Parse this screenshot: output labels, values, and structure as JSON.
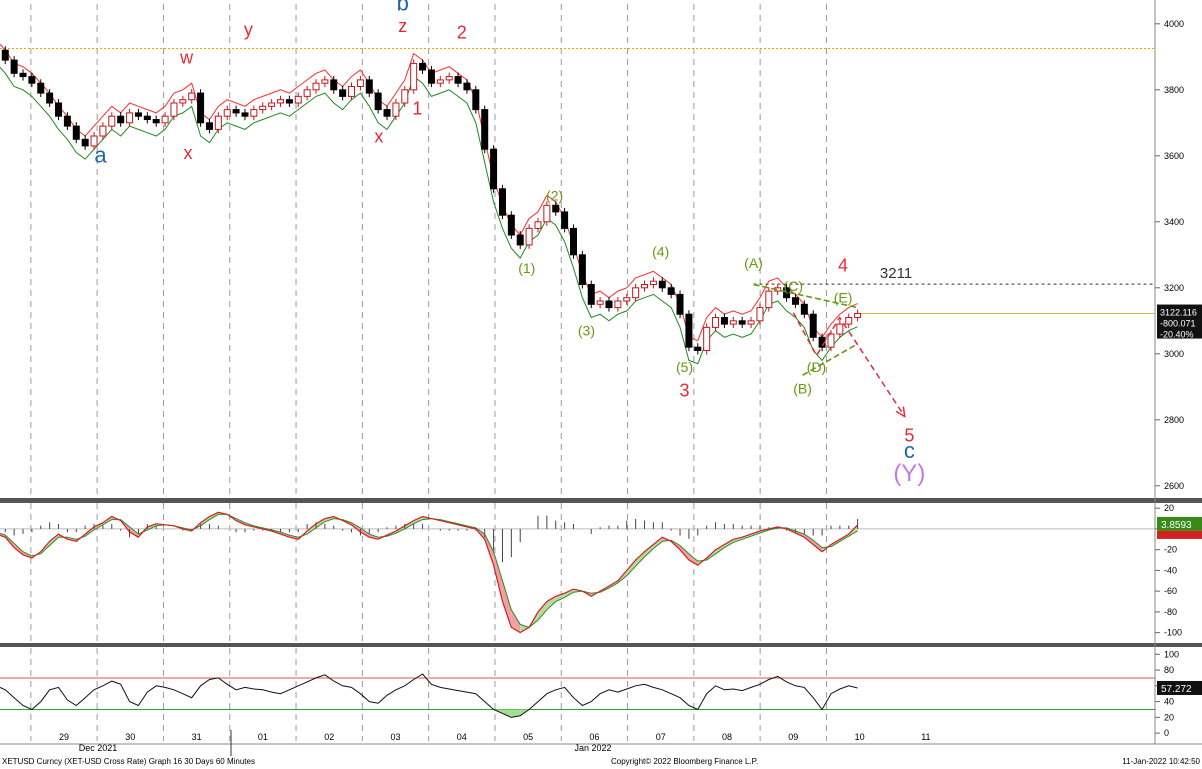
{
  "window": {
    "title": "XETUSD Curncy (XET-USD Cross Rate) Graph 16 30 Days 60 Minutes"
  },
  "footer": {
    "left": "XETUSD Curncy (XET-USD Cross Rate) Graph 16 30 Days 60 Minutes",
    "center": "Copyright© 2022 Bloomberg Finance L.P.",
    "right": "11-Jan-2022 10:42:50"
  },
  "colors": {
    "up": "#c8161d",
    "down": "#000000",
    "upper_band": "#ff2a2a",
    "lower_band": "#1f8a1f",
    "wave_red": "#e8283a",
    "wave_blue": "#2266aa",
    "wave_green": "#669911",
    "wave_purple": "#c07ae6",
    "level_orange": "#e0a800"
  },
  "chart_data": [
    {
      "type": "line",
      "name": "price",
      "x_labels": [
        "29",
        "30",
        "31",
        "01",
        "02",
        "03",
        "04",
        "05",
        "06",
        "07",
        "08",
        "09",
        "10",
        "11"
      ],
      "x_sublabels": [
        "Dec 2021",
        "Jan 2022"
      ],
      "ylim": [
        2560,
        4060
      ],
      "yticks": [
        2600,
        2800,
        3000,
        3200,
        3400,
        3600,
        3800,
        4000
      ],
      "grid": true,
      "close_series": [
        3920,
        3890,
        3850,
        3840,
        3820,
        3790,
        3760,
        3720,
        3690,
        3650,
        3630,
        3660,
        3690,
        3720,
        3700,
        3730,
        3720,
        3710,
        3700,
        3720,
        3760,
        3770,
        3790,
        3700,
        3680,
        3720,
        3740,
        3730,
        3720,
        3740,
        3750,
        3760,
        3770,
        3760,
        3780,
        3800,
        3820,
        3830,
        3800,
        3780,
        3810,
        3830,
        3790,
        3740,
        3720,
        3760,
        3800,
        3880,
        3860,
        3820,
        3830,
        3840,
        3820,
        3800,
        3740,
        3620,
        3500,
        3420,
        3360,
        3330,
        3380,
        3400,
        3450,
        3430,
        3380,
        3300,
        3210,
        3150,
        3160,
        3140,
        3160,
        3170,
        3200,
        3210,
        3220,
        3200,
        3180,
        3120,
        3020,
        3010,
        3080,
        3110,
        3090,
        3100,
        3090,
        3100,
        3140,
        3190,
        3200,
        3170,
        3150,
        3120,
        3050,
        3020,
        3060,
        3090,
        3110,
        3122
      ],
      "current_price": "3122.116",
      "change": "-800.071",
      "change_pct": "-20.40%",
      "levels": [
        {
          "label": "3211",
          "value": 3211
        },
        {
          "label": "",
          "value": 3925
        },
        {
          "label": "",
          "value": 3122
        }
      ],
      "annotations": [
        {
          "text": "a",
          "x": 29.55,
          "y": 3580
        },
        {
          "text": "w",
          "x": 30.85,
          "y": 3880
        },
        {
          "text": "x",
          "x": 30.87,
          "y": 3590
        },
        {
          "text": "y",
          "x": 31.78,
          "y": 3965
        },
        {
          "text": "x",
          "x": 33.75,
          "y": 3640
        },
        {
          "text": "b",
          "x": 34.11,
          "y": 4040
        },
        {
          "text": "z",
          "x": 34.11,
          "y": 3975
        },
        {
          "text": "1",
          "x": 34.33,
          "y": 3725
        },
        {
          "text": "2",
          "x": 35.0,
          "y": 3955
        },
        {
          "text": "(2)",
          "x": 36.4,
          "y": 3465
        },
        {
          "text": "(1)",
          "x": 35.98,
          "y": 3245
        },
        {
          "text": "(4)",
          "x": 38.0,
          "y": 3295
        },
        {
          "text": "(3)",
          "x": 36.88,
          "y": 3055
        },
        {
          "text": "(A)",
          "x": 39.4,
          "y": 3260
        },
        {
          "text": "4",
          "x": 40.75,
          "y": 3250
        },
        {
          "text": "3211",
          "x": 41.55,
          "y": 3230
        },
        {
          "text": "(C)",
          "x": 40.0,
          "y": 3190
        },
        {
          "text": "(E)",
          "x": 40.75,
          "y": 3155
        },
        {
          "text": "(5)",
          "x": 38.36,
          "y": 2945
        },
        {
          "text": "3",
          "x": 38.36,
          "y": 2870
        },
        {
          "text": "(D)",
          "x": 40.35,
          "y": 2945
        },
        {
          "text": "(B)",
          "x": 40.14,
          "y": 2880
        },
        {
          "text": "5",
          "x": 41.75,
          "y": 2735
        },
        {
          "text": "c",
          "x": 41.75,
          "y": 2685
        },
        {
          "text": "(Y)",
          "x": 41.75,
          "y": 2615
        }
      ],
      "projection": [
        {
          "x": 40.0,
          "y": 3125
        },
        {
          "x": 40.35,
          "y": 2995
        },
        {
          "x": 40.7,
          "y": 3110
        },
        {
          "x": 41.68,
          "y": 2810
        }
      ],
      "triangle_lines": [
        {
          "from": {
            "x": 39.4,
            "y": 3210
          },
          "to": {
            "x": 40.97,
            "y": 3140
          }
        },
        {
          "from": {
            "x": 40.14,
            "y": 2935
          },
          "to": {
            "x": 40.97,
            "y": 3030
          }
        }
      ]
    },
    {
      "type": "area",
      "name": "macd",
      "ylim": [
        -110,
        25
      ],
      "yticks": [
        -100,
        -80,
        -60,
        -40,
        -20,
        0,
        20
      ],
      "value_label": "3.8593",
      "fast": [
        -5,
        -8,
        -18,
        -25,
        -28,
        -22,
        -12,
        -5,
        -10,
        -12,
        -5,
        2,
        6,
        12,
        8,
        -3,
        -8,
        2,
        5,
        4,
        3,
        0,
        -2,
        6,
        12,
        16,
        14,
        8,
        4,
        2,
        0,
        -2,
        -5,
        -8,
        -10,
        -2,
        5,
        10,
        12,
        8,
        4,
        -3,
        -8,
        -10,
        -6,
        -2,
        3,
        8,
        12,
        10,
        8,
        6,
        4,
        2,
        0,
        -10,
        -35,
        -70,
        -95,
        -100,
        -95,
        -80,
        -70,
        -65,
        -62,
        -58,
        -60,
        -65,
        -60,
        -55,
        -50,
        -40,
        -30,
        -22,
        -15,
        -8,
        -12,
        -20,
        -30,
        -35,
        -28,
        -20,
        -15,
        -10,
        -8,
        -5,
        -2,
        0,
        2,
        0,
        -4,
        -8,
        -15,
        -22,
        -15,
        -10,
        -5,
        3.8593
      ],
      "slow": [
        -3,
        -6,
        -14,
        -22,
        -26,
        -24,
        -16,
        -8,
        -8,
        -10,
        -7,
        -1,
        4,
        9,
        9,
        2,
        -5,
        -1,
        3,
        4,
        3,
        1,
        -1,
        3,
        9,
        14,
        14,
        10,
        6,
        3,
        1,
        -1,
        -3,
        -6,
        -8,
        -5,
        1,
        7,
        10,
        9,
        6,
        1,
        -5,
        -8,
        -7,
        -4,
        0,
        5,
        9,
        10,
        9,
        7,
        5,
        3,
        1,
        -5,
        -22,
        -50,
        -78,
        -92,
        -95,
        -88,
        -78,
        -70,
        -66,
        -61,
        -60,
        -62,
        -61,
        -57,
        -52,
        -45,
        -36,
        -27,
        -19,
        -12,
        -11,
        -16,
        -24,
        -31,
        -30,
        -24,
        -18,
        -13,
        -10,
        -7,
        -4,
        -1,
        1,
        1,
        -2,
        -5,
        -11,
        -18,
        -17,
        -12,
        -7,
        -2
      ],
      "histogram": [
        -2,
        -2,
        -4,
        -3,
        -2,
        2,
        4,
        3,
        -2,
        -2,
        2,
        3,
        2,
        3,
        -1,
        -5,
        -3,
        3,
        2,
        0,
        0,
        -1,
        -1,
        3,
        3,
        2,
        0,
        -2,
        -2,
        -1,
        -1,
        -1,
        -2,
        -2,
        -2,
        3,
        4,
        3,
        2,
        -1,
        -2,
        -4,
        -3,
        -2,
        1,
        2,
        3,
        3,
        3,
        0,
        -1,
        -1,
        -1,
        -1,
        -1,
        -5,
        -13,
        -20,
        -17,
        -8,
        0,
        8,
        8,
        5,
        4,
        3,
        0,
        -3,
        1,
        2,
        2,
        5,
        6,
        5,
        4,
        4,
        -1,
        -4,
        -6,
        -4,
        2,
        4,
        3,
        3,
        2,
        2,
        2,
        1,
        1,
        -1,
        -2,
        -3,
        -4,
        -4,
        2,
        2,
        2,
        6
      ]
    },
    {
      "type": "line",
      "name": "rsi",
      "ylim": [
        -10,
        108
      ],
      "yticks": [
        0,
        20,
        40,
        60,
        80,
        100
      ],
      "value_label": "57.272",
      "upper": 70,
      "lower": 30,
      "values": [
        60,
        55,
        45,
        35,
        30,
        40,
        55,
        58,
        42,
        35,
        45,
        55,
        60,
        66,
        62,
        40,
        35,
        52,
        60,
        58,
        55,
        50,
        45,
        60,
        68,
        70,
        62,
        55,
        58,
        56,
        55,
        52,
        50,
        55,
        60,
        65,
        70,
        74,
        66,
        60,
        58,
        50,
        40,
        38,
        48,
        55,
        60,
        68,
        75,
        62,
        58,
        56,
        54,
        52,
        50,
        40,
        30,
        25,
        20,
        22,
        30,
        40,
        50,
        55,
        58,
        45,
        35,
        40,
        50,
        55,
        52,
        56,
        60,
        62,
        58,
        55,
        50,
        45,
        35,
        30,
        50,
        60,
        55,
        56,
        54,
        58,
        62,
        68,
        72,
        65,
        60,
        58,
        45,
        30,
        50,
        56,
        60,
        57.272
      ]
    }
  ]
}
